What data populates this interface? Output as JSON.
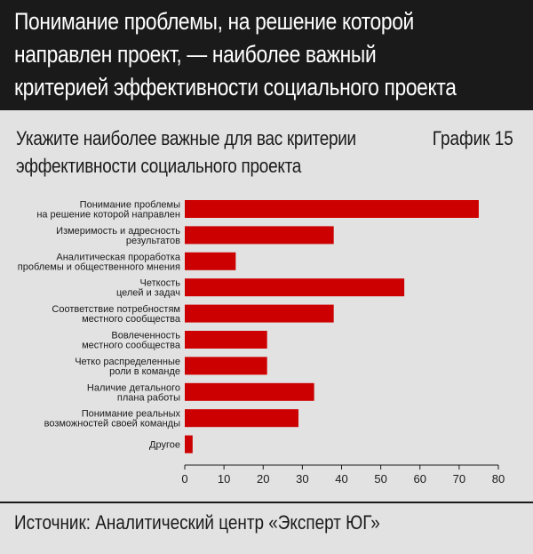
{
  "header": {
    "title_lines": [
      "Понимание проблемы, на решение которой",
      "направлен проект, — наиболее важный",
      "критерией эффективности социального проекта"
    ]
  },
  "subtitle_lines": [
    "Укажите наиболее важные для вас критерии",
    "эффективности социального проекта"
  ],
  "chart_label": "График 15",
  "source": "Источник: Аналитический центр «Эксперт ЮГ»",
  "colors": {
    "header_bg": "#1a1a1a",
    "bar": "#cc0000",
    "background": "#e2e2e2"
  },
  "chart_data": {
    "type": "bar",
    "orientation": "horizontal",
    "categories": [
      [
        "Понимание проблемы",
        "на решение которой направлен"
      ],
      [
        "Измеримость и адресность",
        "результатов"
      ],
      [
        "Аналитическая проработка",
        "проблемы и общественного мнения"
      ],
      [
        "Четкость",
        "целей и задач"
      ],
      [
        "Соответствие потребностям",
        "местного сообщества"
      ],
      [
        "Вовлеченность",
        "местного сообщества"
      ],
      [
        "Четко распределенные",
        "роли в команде"
      ],
      [
        "Наличие детального",
        "плана работы"
      ],
      [
        "Понимание реальных",
        "возможностей своей команды"
      ],
      [
        "Другое"
      ]
    ],
    "values": [
      75,
      38,
      13,
      56,
      38,
      21,
      21,
      33,
      29,
      2
    ],
    "xlim": [
      0,
      80
    ],
    "xticks": [
      0,
      10,
      20,
      30,
      40,
      50,
      60,
      70,
      80
    ],
    "grid": false,
    "legend": "none"
  }
}
